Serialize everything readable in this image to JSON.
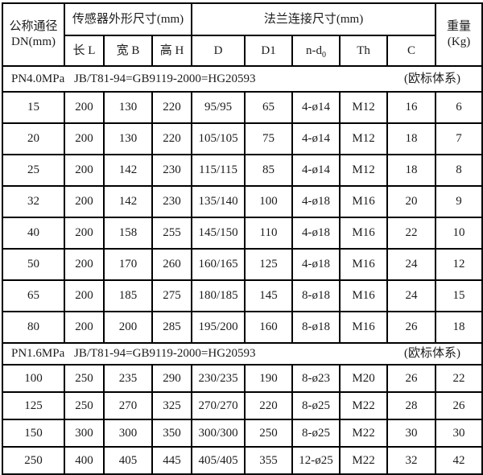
{
  "page": {
    "background": "#ffffff",
    "border_color": "#000000",
    "text_color": "#1c1c1c"
  },
  "table": {
    "header": {
      "dn": {
        "line1": "公称通径",
        "line2": "DN(mm)"
      },
      "sensor_group": "传感器外形尺寸(mm)",
      "flange_group": "法兰连接尺寸(mm)",
      "weight": {
        "line1": "重量",
        "line2": "(Kg)"
      },
      "sub_columns": {
        "length": "长 L",
        "width": "宽 B",
        "height": "高 H",
        "d": "D",
        "d1": "D1",
        "nd_base": "n-d",
        "nd_subscript": "0",
        "th": "Th",
        "c": "C"
      }
    },
    "sections": [
      {
        "pn": "PN4.0MPa",
        "standard": "JB/T81-94=GB9119-2000=HG20593",
        "note": "(欧标体系)",
        "rows": [
          [
            "15",
            "200",
            "130",
            "220",
            "95/95",
            "65",
            "4-ø14",
            "M12",
            "16",
            "6"
          ],
          [
            "20",
            "200",
            "130",
            "220",
            "105/105",
            "75",
            "4-ø14",
            "M12",
            "18",
            "7"
          ],
          [
            "25",
            "200",
            "142",
            "230",
            "115/115",
            "85",
            "4-ø14",
            "M12",
            "18",
            "8"
          ],
          [
            "32",
            "200",
            "142",
            "230",
            "135/140",
            "100",
            "4-ø18",
            "M16",
            "20",
            "9"
          ],
          [
            "40",
            "200",
            "158",
            "255",
            "145/150",
            "110",
            "4-ø18",
            "M16",
            "22",
            "10"
          ],
          [
            "50",
            "200",
            "170",
            "260",
            "160/165",
            "125",
            "4-ø18",
            "M16",
            "24",
            "12"
          ],
          [
            "65",
            "200",
            "185",
            "275",
            "180/185",
            "145",
            "8-ø18",
            "M16",
            "24",
            "15"
          ],
          [
            "80",
            "200",
            "200",
            "285",
            "195/200",
            "160",
            "8-ø18",
            "M16",
            "26",
            "18"
          ]
        ]
      },
      {
        "pn": "PN1.6MPa",
        "standard": "JB/T81-94=GB9119-2000=HG20593",
        "note": "(欧标体系)",
        "rows": [
          [
            "100",
            "250",
            "235",
            "290",
            "230/235",
            "190",
            "8-ø23",
            "M20",
            "26",
            "22"
          ],
          [
            "125",
            "250",
            "270",
            "325",
            "270/270",
            "220",
            "8-ø25",
            "M22",
            "28",
            "26"
          ],
          [
            "150",
            "300",
            "300",
            "350",
            "300/300",
            "250",
            "8-ø25",
            "M22",
            "30",
            "30"
          ],
          [
            "250",
            "400",
            "405",
            "445",
            "405/405",
            "355",
            "12-ø25",
            "M22",
            "32",
            "42"
          ]
        ]
      }
    ]
  }
}
